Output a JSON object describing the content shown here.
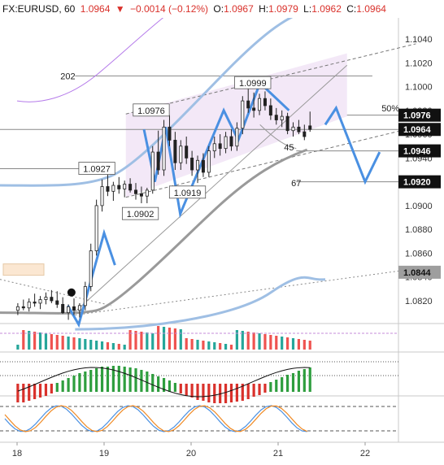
{
  "header": {
    "symbol": "FX:EURUSD, 60",
    "last": "1.0964",
    "arrow": "▼",
    "change": "−0.0014 (−0.12%)",
    "o_label": "O:",
    "o_value": "1.0967",
    "h_label": "H:",
    "h_value": "1.0979",
    "l_label": "L:",
    "l_value": "1.0962",
    "c_label": "C:",
    "c_value": "1.0964"
  },
  "chart_data": {
    "type": "candlestick",
    "price_axis": {
      "min": 1.08,
      "max": 1.105,
      "ticks": [
        "1.1040",
        "1.1020",
        "1.1000",
        "1.0980",
        "1.0960",
        "1.0940",
        "1.0920",
        "1.0900",
        "1.0880",
        "1.0860",
        "1.0840",
        "1.0820"
      ]
    },
    "x_axis": {
      "ticks": [
        {
          "label": "18",
          "t": 0
        },
        {
          "label": "19",
          "t": 24
        },
        {
          "label": "20",
          "t": 48
        },
        {
          "label": "21",
          "t": 72
        },
        {
          "label": "22",
          "t": 96
        }
      ]
    },
    "price_badges": [
      {
        "value": "1.0976",
        "color": "#111111",
        "text_color": "#ffffff"
      },
      {
        "value": "1.0964",
        "color": "#111111",
        "text_color": "#ffffff"
      },
      {
        "value": "1.0946",
        "color": "#111111",
        "text_color": "#ffffff"
      },
      {
        "value": "1.0920",
        "color": "#111111",
        "text_color": "#ffffff"
      },
      {
        "value": "1.0844",
        "color": "#9e9e9e",
        "text_color": "#111111"
      }
    ],
    "annotations": [
      {
        "text": "1.0999",
        "t": 65,
        "price": 1.1003
      },
      {
        "text": "1.0976",
        "t": 37,
        "price": 1.098
      },
      {
        "text": "1.0927",
        "t": 22,
        "price": 1.0931
      },
      {
        "text": "1.0919",
        "t": 47,
        "price": 1.0911
      },
      {
        "text": "1.0902",
        "t": 34,
        "price": 1.0893
      },
      {
        "text": "202",
        "t": 14,
        "price": 1.1009
      },
      {
        "text": "50%",
        "t": 103,
        "price": 1.0982
      },
      {
        "text": "45",
        "t": 75,
        "price": 1.0949
      },
      {
        "text": "67",
        "t": 77,
        "price": 1.0919
      }
    ],
    "candles": [
      [
        1.0812,
        1.0818,
        1.0808,
        1.0815
      ],
      [
        1.0815,
        1.0821,
        1.0812,
        1.0814
      ],
      [
        1.0814,
        1.0822,
        1.0811,
        1.0819
      ],
      [
        1.0819,
        1.0826,
        1.0815,
        1.0818
      ],
      [
        1.0818,
        1.0824,
        1.0813,
        1.0821
      ],
      [
        1.0821,
        1.0827,
        1.0817,
        1.0823
      ],
      [
        1.0823,
        1.0829,
        1.0818,
        1.082
      ],
      [
        1.082,
        1.0828,
        1.0814,
        1.0817
      ],
      [
        1.0817,
        1.0823,
        1.0809,
        1.081
      ],
      [
        1.081,
        1.0817,
        1.0804,
        1.0815
      ],
      [
        1.0815,
        1.0822,
        1.0808,
        1.0812
      ],
      [
        1.0812,
        1.0818,
        1.0806,
        1.0816
      ],
      [
        1.0816,
        1.0836,
        1.0812,
        1.0832
      ],
      [
        1.0832,
        1.0868,
        1.0828,
        1.0862
      ],
      [
        1.0862,
        1.0905,
        1.0858,
        1.09
      ],
      [
        1.09,
        1.0922,
        1.0895,
        1.0916
      ],
      [
        1.0916,
        1.0927,
        1.0908,
        1.0912
      ],
      [
        1.0912,
        1.092,
        1.0904,
        1.0917
      ],
      [
        1.0917,
        1.0924,
        1.091,
        1.0914
      ],
      [
        1.0914,
        1.0921,
        1.0907,
        1.0918
      ],
      [
        1.0918,
        1.0923,
        1.0911,
        1.0913
      ],
      [
        1.0913,
        1.0919,
        1.0905,
        1.091
      ],
      [
        1.091,
        1.0916,
        1.0902,
        1.0908
      ],
      [
        1.0908,
        1.0915,
        1.0902,
        1.0913
      ],
      [
        1.0913,
        1.095,
        1.091,
        1.0945
      ],
      [
        1.0945,
        1.0963,
        1.0926,
        1.093
      ],
      [
        1.093,
        1.0972,
        1.0925,
        1.0966
      ],
      [
        1.0966,
        1.0976,
        1.095,
        1.0955
      ],
      [
        1.0955,
        1.0962,
        1.093,
        1.0936
      ],
      [
        1.0936,
        1.0955,
        1.093,
        1.095
      ],
      [
        1.095,
        1.0958,
        1.0935,
        1.094
      ],
      [
        1.094,
        1.0946,
        1.0925,
        1.093
      ],
      [
        1.093,
        1.0942,
        1.0919,
        1.0938
      ],
      [
        1.0938,
        1.0944,
        1.0924,
        1.0928
      ],
      [
        1.0928,
        1.095,
        1.0924,
        1.0946
      ],
      [
        1.0946,
        1.0958,
        1.094,
        1.0952
      ],
      [
        1.0952,
        1.096,
        1.0942,
        1.0948
      ],
      [
        1.0948,
        1.0962,
        1.0944,
        1.0958
      ],
      [
        1.0958,
        1.0964,
        1.0946,
        1.095
      ],
      [
        1.095,
        1.097,
        1.0946,
        1.0965
      ],
      [
        1.0965,
        1.0992,
        1.096,
        1.0988
      ],
      [
        1.0988,
        1.0999,
        1.0978,
        1.0982
      ],
      [
        1.0982,
        1.0995,
        1.0974,
        1.098
      ],
      [
        1.098,
        1.0994,
        1.0976,
        1.099
      ],
      [
        1.099,
        1.0996,
        1.098,
        1.0984
      ],
      [
        1.0984,
        1.099,
        1.0972,
        1.0976
      ],
      [
        1.0976,
        1.0982,
        1.0968,
        1.0972
      ],
      [
        1.0972,
        1.098,
        1.0966,
        1.0975
      ],
      [
        1.0975,
        1.0978,
        1.096,
        1.0963
      ],
      [
        1.0963,
        1.097,
        1.0958,
        1.0966
      ],
      [
        1.0966,
        1.0972,
        1.096,
        1.0962
      ],
      [
        1.0962,
        1.0968,
        1.0955,
        1.0958
      ],
      [
        1.0967,
        1.0979,
        1.0962,
        1.0964
      ]
    ]
  }
}
